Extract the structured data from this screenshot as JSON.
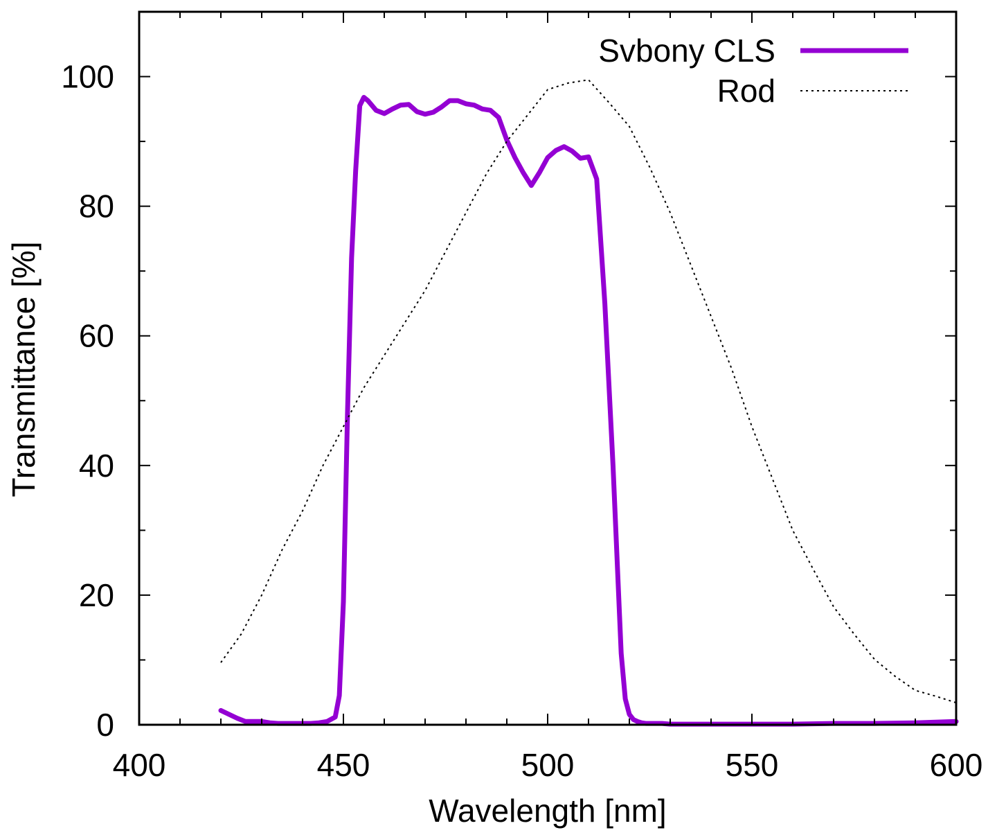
{
  "chart_data": {
    "type": "line",
    "xlabel": "Wavelength [nm]",
    "ylabel": "Transmittance [%]",
    "xlim": [
      400,
      600
    ],
    "ylim": [
      0,
      110
    ],
    "xticks": [
      400,
      450,
      500,
      550,
      600
    ],
    "yticks": [
      0,
      20,
      40,
      60,
      80,
      100
    ],
    "x_minor_step": 10,
    "y_minor_step": 10,
    "grid": false,
    "legend_position": "top-right",
    "series": [
      {
        "name": "Svbony CLS",
        "color": "#9400d3",
        "style": "solid-thick",
        "x": [
          420,
          422,
          424,
          426,
          428,
          430,
          432,
          434,
          436,
          438,
          440,
          442,
          444,
          446,
          448,
          449,
          450,
          451,
          452,
          453,
          454,
          455,
          456,
          458,
          460,
          462,
          464,
          466,
          468,
          470,
          472,
          474,
          476,
          478,
          480,
          482,
          484,
          486,
          488,
          490,
          492,
          494,
          496,
          498,
          500,
          502,
          504,
          506,
          508,
          510,
          512,
          514,
          516,
          518,
          519,
          520,
          521,
          522,
          523,
          524,
          526,
          528,
          530,
          535,
          540,
          550,
          560,
          570,
          580,
          590,
          600
        ],
        "values": [
          2.2,
          1.6,
          1.0,
          0.5,
          0.5,
          0.5,
          0.3,
          0.2,
          0.2,
          0.2,
          0.2,
          0.2,
          0.3,
          0.5,
          1.2,
          4.5,
          19,
          48,
          72,
          85.5,
          95.5,
          96.8,
          96.3,
          94.8,
          94.3,
          95.0,
          95.6,
          95.7,
          94.6,
          94.2,
          94.5,
          95.3,
          96.3,
          96.3,
          95.8,
          95.6,
          95.0,
          94.8,
          93.7,
          90.2,
          87.5,
          85.2,
          83.2,
          85.2,
          87.5,
          88.6,
          89.2,
          88.5,
          87.4,
          87.6,
          84.2,
          65,
          40,
          11,
          4.0,
          1.6,
          0.8,
          0.5,
          0.3,
          0.2,
          0.2,
          0.2,
          0.1,
          0.1,
          0.1,
          0.1,
          0.1,
          0.2,
          0.2,
          0.3,
          0.5
        ]
      },
      {
        "name": "Rod",
        "color": "#000000",
        "style": "dotted",
        "x": [
          420,
          425,
          430,
          435,
          440,
          445,
          450,
          455,
          460,
          465,
          470,
          475,
          480,
          485,
          490,
          495,
          500,
          505,
          510,
          515,
          520,
          525,
          530,
          535,
          540,
          545,
          550,
          555,
          560,
          565,
          570,
          575,
          580,
          585,
          590,
          595,
          600
        ],
        "values": [
          9.6,
          14,
          20,
          27,
          33,
          40,
          46,
          52,
          57,
          62,
          67,
          73,
          79,
          85,
          90,
          94,
          98,
          99,
          99.5,
          96,
          92.3,
          86,
          79,
          71,
          63,
          55,
          46,
          38,
          30,
          24,
          18.2,
          14,
          10.1,
          7.5,
          5.3,
          4.4,
          3.4
        ]
      }
    ]
  }
}
